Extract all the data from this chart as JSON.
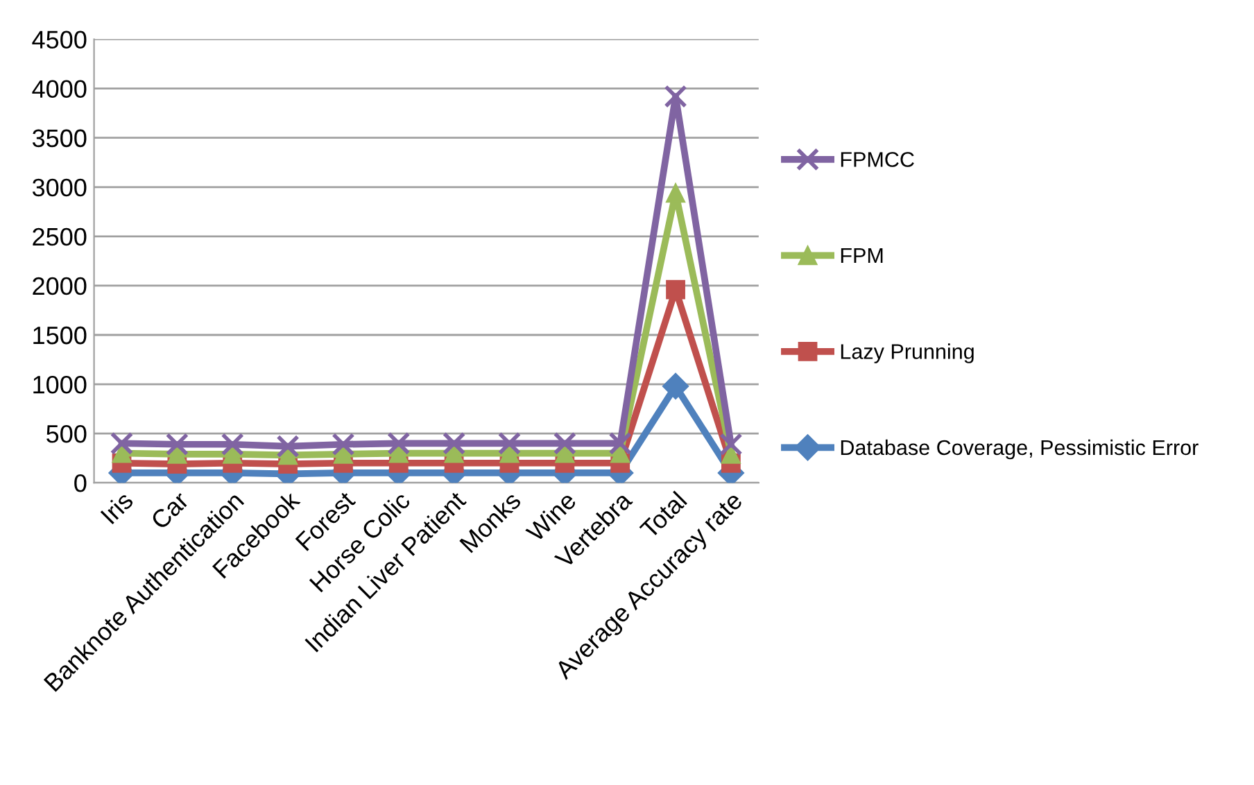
{
  "chart_data": {
    "type": "line",
    "categories": [
      "Iris",
      "Car",
      "Banknote Authentication",
      "Facebook",
      "Forest",
      "Horse Colic",
      "Indian Liver Patient",
      "Monks",
      "Wine",
      "Vertebra",
      "Total",
      "Average Accuracy rate"
    ],
    "series": [
      {
        "name": "FPMCC",
        "color": "#8064a2",
        "marker": "cross",
        "values": [
          400,
          390,
          390,
          370,
          390,
          400,
          400,
          400,
          400,
          400,
          3920,
          390
        ]
      },
      {
        "name": "FPM",
        "color": "#9bbb59",
        "marker": "triangle",
        "values": [
          300,
          290,
          290,
          280,
          290,
          300,
          300,
          300,
          300,
          300,
          2940,
          290
        ]
      },
      {
        "name": "Lazy Prunning",
        "color": "#c0504d",
        "marker": "square",
        "values": [
          200,
          190,
          200,
          190,
          200,
          200,
          200,
          200,
          200,
          200,
          1960,
          200
        ]
      },
      {
        "name": "Database Coverage, Pessimistic Error",
        "color": "#4f81bd",
        "marker": "diamond",
        "values": [
          100,
          100,
          100,
          90,
          100,
          100,
          100,
          100,
          100,
          100,
          980,
          100
        ]
      }
    ],
    "ylim": [
      0,
      4500
    ],
    "yticks": [
      0,
      500,
      1000,
      1500,
      2000,
      2500,
      3000,
      3500,
      4000,
      4500
    ],
    "grid": "y",
    "legend": "right"
  }
}
